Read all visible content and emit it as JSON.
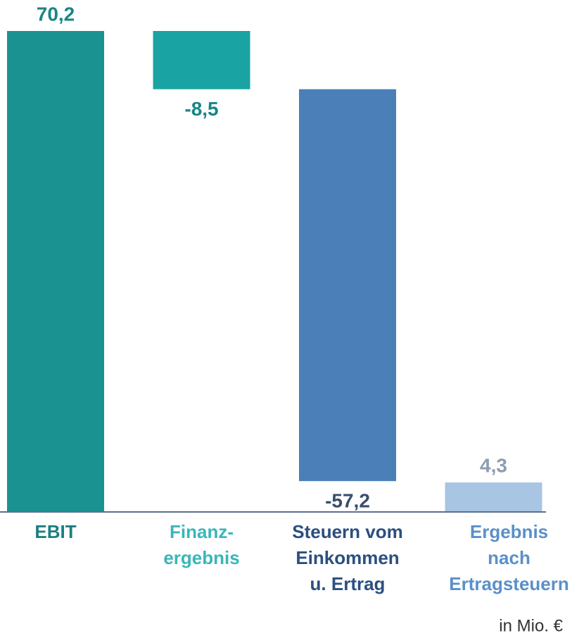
{
  "chart_data": {
    "type": "waterfall",
    "categories": [
      [
        "EBIT"
      ],
      [
        "Finanz-",
        "ergebnis"
      ],
      [
        "Steuern vom",
        "Einkommen",
        "u. Ertrag"
      ],
      [
        "Ergebnis",
        "nach",
        "Ertragsteuern"
      ]
    ],
    "values": [
      70.2,
      -8.5,
      -57.2,
      4.3
    ],
    "value_labels": [
      "70,2",
      "-8,5",
      "-57,2",
      "4,3"
    ],
    "colors": [
      "#1b9292",
      "#1aa3a3",
      "#4a7fb8",
      "#a8c5e3"
    ],
    "value_label_colors": [
      "#1a8585",
      "#1a8585",
      "#3a4d6c",
      "#8d9db2"
    ],
    "category_colors": [
      "#1a7f80",
      "#3ab6b9",
      "#2b4f80",
      "#5a90ca"
    ],
    "total_bars": [
      0,
      3
    ],
    "note": "in Mio. €"
  }
}
